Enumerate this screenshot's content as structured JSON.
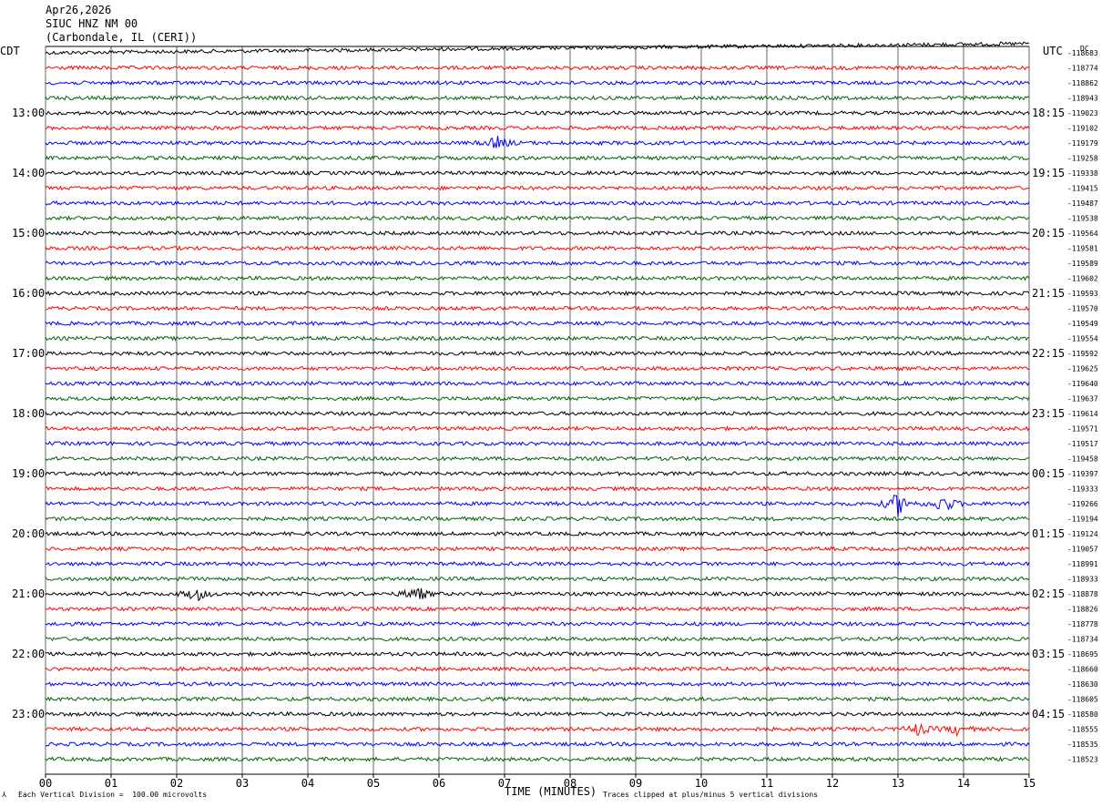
{
  "header": {
    "date": "Apr26,2026",
    "station": "SIUC HNZ NM 00",
    "location": "(Carbondale, IL (CERI))"
  },
  "left_tz": "CDT",
  "right_tz": "UTC",
  "dc_label": "DC",
  "footer": {
    "scale_note": "Each Vertical Division =  100.00 microvolts",
    "xlabel": "TIME (MINUTES)",
    "clip_note": "Traces clipped at plus/minus 5 vertical divisions"
  },
  "colors": {
    "trace_cycle": [
      "#000000",
      "#ff0000",
      "#0000ff",
      "#006400"
    ],
    "grid": "#000000"
  },
  "chart_data": {
    "type": "line",
    "title": "SIUC HNZ NM 00",
    "xlabel": "TIME (MINUTES)",
    "ylabel": "",
    "x_ticks": [
      "00",
      "01",
      "02",
      "03",
      "04",
      "05",
      "06",
      "07",
      "08",
      "09",
      "10",
      "11",
      "12",
      "13",
      "14",
      "15"
    ],
    "xlim": [
      0,
      15
    ],
    "trace_count": 48,
    "trace_minutes": 15,
    "left_hour_labels": [
      "13:00",
      "14:00",
      "15:00",
      "16:00",
      "17:00",
      "18:00",
      "19:00",
      "20:00",
      "21:00",
      "22:00",
      "23:00"
    ],
    "right_hour_labels": [
      "18:15",
      "19:15",
      "20:15",
      "21:15",
      "22:15",
      "23:15",
      "00:15",
      "01:15",
      "02:15",
      "03:15",
      "04:15"
    ],
    "dc_offsets": [
      "-118683",
      "-118774",
      "-118862",
      "-118943",
      "-119023",
      "-119102",
      "-119179",
      "-119258",
      "-119338",
      "-119415",
      "-119487",
      "-119538",
      "-119564",
      "-119581",
      "-119589",
      "-119602",
      "-119593",
      "-119570",
      "-119549",
      "-119554",
      "-119592",
      "-119625",
      "-119640",
      "-119637",
      "-119614",
      "-119571",
      "-119517",
      "-119458",
      "-119397",
      "-119333",
      "-119266",
      "-119194",
      "-119124",
      "-119057",
      "-118991",
      "-118933",
      "-118878",
      "-118826",
      "-118778",
      "-118734",
      "-118695",
      "-118660",
      "-118630",
      "-118605",
      "-118580",
      "-118555",
      "-118535",
      "-118523"
    ],
    "events": [
      {
        "trace": 6,
        "minute": 6.9,
        "amplitude": 1.2
      },
      {
        "trace": 30,
        "minute": 13.0,
        "amplitude": 2.2
      },
      {
        "trace": 30,
        "minute": 13.7,
        "amplitude": 1.8
      },
      {
        "trace": 36,
        "minute": 2.3,
        "amplitude": 1.3
      },
      {
        "trace": 36,
        "minute": 5.65,
        "amplitude": 1.6
      },
      {
        "trace": 45,
        "minute": 13.3,
        "amplitude": 1.1
      },
      {
        "trace": 45,
        "minute": 13.9,
        "amplitude": 0.9
      }
    ]
  }
}
